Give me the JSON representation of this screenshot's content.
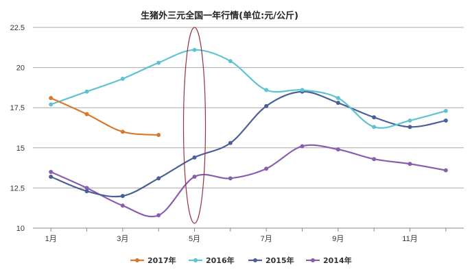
{
  "chart_data": {
    "type": "line",
    "title": "生猪外三元全国一年行情(单位:元/公斤)",
    "xlabel": "",
    "ylabel": "",
    "x": [
      1,
      2,
      3,
      4,
      5,
      6,
      7,
      8,
      9,
      10,
      11,
      12
    ],
    "x_tick_labels": [
      "1月",
      "3月",
      "5月",
      "7月",
      "9月",
      "11月"
    ],
    "x_tick_values": [
      1,
      3,
      5,
      7,
      9,
      11
    ],
    "y_ticks": [
      "10",
      "12.5",
      "15",
      "17.5",
      "20",
      "22.5"
    ],
    "y_tick_values": [
      10,
      12.5,
      15,
      17.5,
      20,
      22.5
    ],
    "ylim": [
      10,
      22.5
    ],
    "xlim": [
      0.5,
      12.5
    ],
    "grid": "horizontal",
    "legend_position": "bottom",
    "smooth": true,
    "series": [
      {
        "name": "2017年",
        "color": "#d8782a",
        "values": [
          18.1,
          17.1,
          16.0,
          15.8,
          null,
          null,
          null,
          null,
          null,
          null,
          null,
          null
        ]
      },
      {
        "name": "2016年",
        "color": "#5ec3d0",
        "values": [
          17.7,
          18.5,
          19.3,
          20.3,
          21.1,
          20.4,
          18.6,
          18.6,
          18.1,
          16.3,
          16.7,
          17.3
        ]
      },
      {
        "name": "2015年",
        "color": "#4a5f99",
        "values": [
          13.2,
          12.3,
          12.0,
          13.1,
          14.4,
          15.3,
          17.6,
          18.5,
          17.8,
          16.9,
          16.3,
          16.7
        ]
      },
      {
        "name": "2014年",
        "color": "#8a5dae",
        "values": [
          13.5,
          12.5,
          11.4,
          10.8,
          13.2,
          13.1,
          13.7,
          15.1,
          14.9,
          14.3,
          14.0,
          13.6
        ]
      }
    ],
    "annotation": {
      "type": "ellipse",
      "color": "#9a2f3d",
      "around_x": 5,
      "y_range": [
        10.3,
        22.5
      ]
    }
  }
}
